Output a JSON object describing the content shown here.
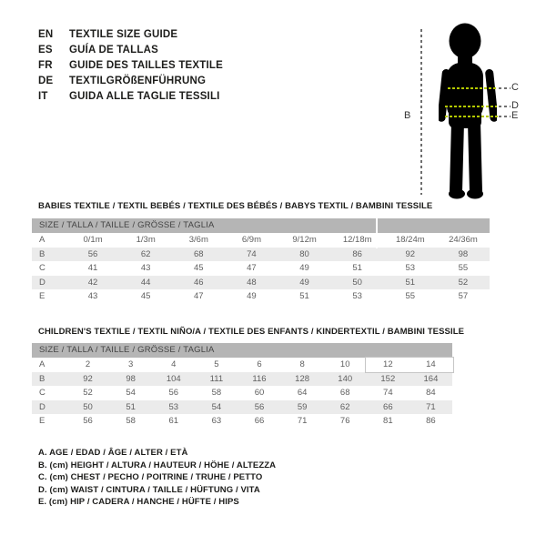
{
  "title": "Textile size guide",
  "languages": [
    {
      "code": "EN",
      "text": "TEXTILE SIZE GUIDE"
    },
    {
      "code": "ES",
      "text": "GUÍA DE TALLAS"
    },
    {
      "code": "FR",
      "text": "GUIDE DES TAILLES TEXTILE"
    },
    {
      "code": "DE",
      "text": "TEXTILGRÖßENFÜHRUNG"
    },
    {
      "code": "IT",
      "text": "GUIDA ALLE TAGLIE TESSILI"
    }
  ],
  "figure": {
    "height_label": "B",
    "chest_label": "C",
    "waist_label": "D",
    "hip_label": "E"
  },
  "babies_table": {
    "heading": "BABIES TEXTILE / TEXTIL BEBÉS / TEXTILE DES BÉBÉS / BABYS TEXTIL / BAMBINI TESSILE",
    "size_header": "SIZE / TALLA / TAILLE / GRÖSSE / TAGLIA",
    "rows": [
      {
        "label": "A",
        "values": [
          "0/1m",
          "1/3m",
          "3/6m",
          "6/9m",
          "9/12m",
          "12/18m",
          "18/24m",
          "24/36m"
        ]
      },
      {
        "label": "B",
        "values": [
          "56",
          "62",
          "68",
          "74",
          "80",
          "86",
          "92",
          "98"
        ]
      },
      {
        "label": "C",
        "values": [
          "41",
          "43",
          "45",
          "47",
          "49",
          "51",
          "53",
          "55"
        ]
      },
      {
        "label": "D",
        "values": [
          "42",
          "44",
          "46",
          "48",
          "49",
          "50",
          "51",
          "52"
        ]
      },
      {
        "label": "E",
        "values": [
          "43",
          "45",
          "47",
          "49",
          "51",
          "53",
          "55",
          "57"
        ]
      }
    ]
  },
  "children_table": {
    "heading": "CHILDREN'S TEXTILE / TEXTIL NIÑO/A / TEXTILE DES ENFANTS / KINDERTEXTIL / BAMBINI TESSILE",
    "size_header": "SIZE / TALLA / TAILLE / GRÖSSE / TAGLIA",
    "rows": [
      {
        "label": "A",
        "values": [
          "2",
          "3",
          "4",
          "5",
          "6",
          "8",
          "10",
          "12",
          "14"
        ]
      },
      {
        "label": "B",
        "values": [
          "92",
          "98",
          "104",
          "111",
          "116",
          "128",
          "140",
          "152",
          "164"
        ]
      },
      {
        "label": "C",
        "values": [
          "52",
          "54",
          "56",
          "58",
          "60",
          "64",
          "68",
          "74",
          "84"
        ]
      },
      {
        "label": "D",
        "values": [
          "50",
          "51",
          "53",
          "54",
          "56",
          "59",
          "62",
          "66",
          "71"
        ]
      },
      {
        "label": "E",
        "values": [
          "56",
          "58",
          "61",
          "63",
          "66",
          "71",
          "76",
          "81",
          "86"
        ]
      }
    ]
  },
  "legend": [
    "A. AGE / EDAD / ÂGE / ALTER / ETÀ",
    "B. (cm) HEIGHT / ALTURA / HAUTEUR / HÖHE / ALTEZZA",
    "C. (cm) CHEST / PECHO / POITRINE / TRUHE / PETTO",
    "D. (cm) WAIST / CINTURA / TAILLE / HÜFTUNG / VITA",
    "E. (cm) HIP / CADERA / HANCHE / HÜFTE / HIPS"
  ],
  "colors": {
    "header_bar": "#b5b5b5",
    "row_alt": "#ebebeb",
    "table_text": "#5f5f5f",
    "heading_text": "#1d1d1b",
    "measure_line": "#b3c800",
    "dash_gray": "#6e6e6e",
    "silhouette": "#000000"
  }
}
